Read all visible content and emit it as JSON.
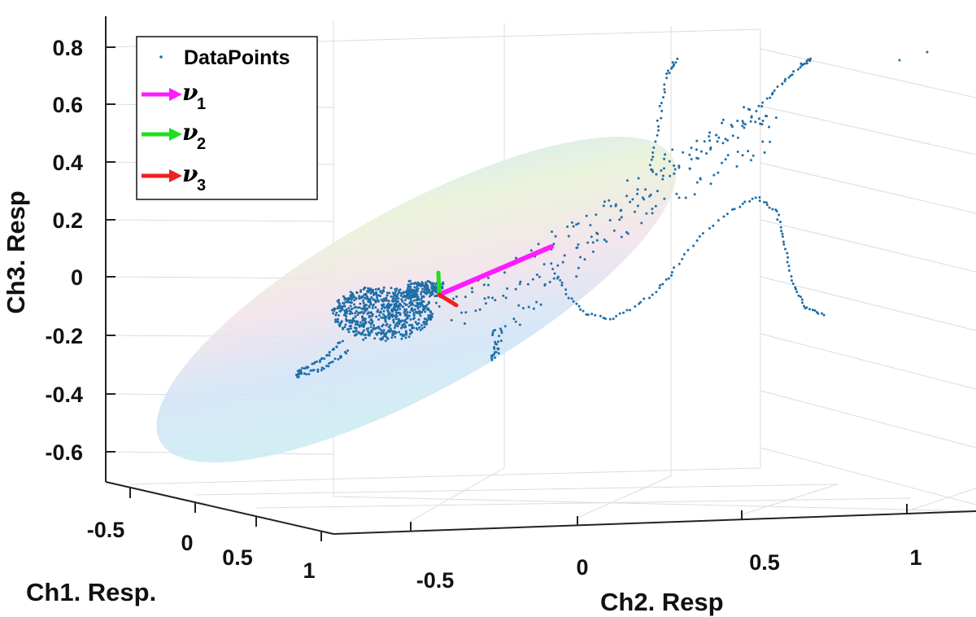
{
  "chart_data": {
    "type": "scatter",
    "projection": "3d",
    "xlabel": "Ch1. Resp.",
    "ylabel": "Ch2. Resp",
    "zlabel": "Ch3. Resp",
    "x_ticks": [
      "-0.5",
      "0",
      "0.5",
      "1"
    ],
    "y_ticks": [
      "-0.5",
      "0",
      "0.5",
      "1"
    ],
    "z_ticks": [
      "0.8",
      "0.6",
      "0.4",
      "0.2",
      "0",
      "-0.2",
      "-0.4",
      "-0.6"
    ],
    "grid": true,
    "legend_position": "top-left",
    "legend": {
      "datapoints": "DataPoints",
      "v1_symbol": "ν",
      "v1_sub": "1",
      "v2_symbol": "ν",
      "v2_sub": "2",
      "v3_symbol": "ν",
      "v3_sub": "3"
    },
    "series": [
      {
        "name": "DataPoints",
        "marker": "dot",
        "color": "#1f6ea8"
      }
    ],
    "vectors": [
      {
        "name": "ν1",
        "color": "#ff1aff"
      },
      {
        "name": "ν2",
        "color": "#1fe01f"
      },
      {
        "name": "ν3",
        "color": "#ee2222"
      }
    ],
    "ellipsoid": {
      "colormap": "pastel light blue-green-pink",
      "alpha": 0.3
    }
  }
}
